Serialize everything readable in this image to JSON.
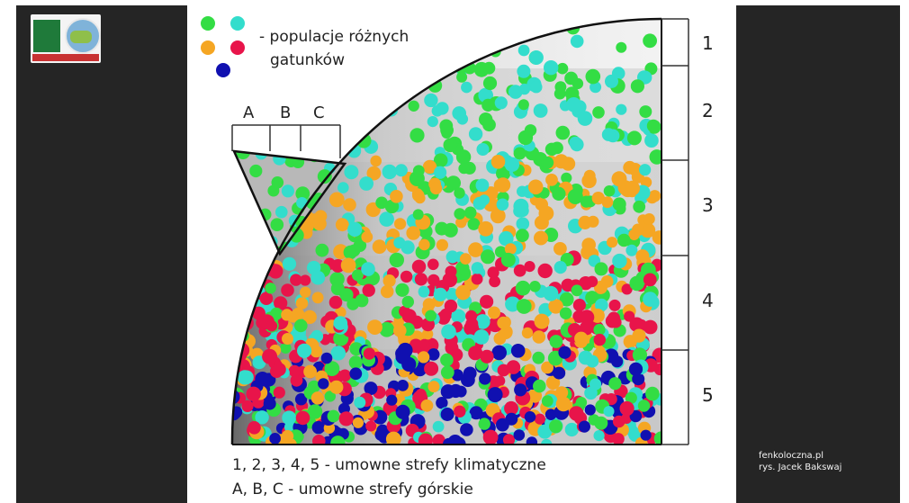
{
  "legend": {
    "line1": "- populacje różnych",
    "line2": "gatunków",
    "dot_colors": [
      "#33dd44",
      "#33ddcc",
      "#f5a623",
      "#e8144a",
      "#1010b0"
    ]
  },
  "mountain_zones": [
    "A",
    "B",
    "C"
  ],
  "climate_zones": [
    "1",
    "2",
    "3",
    "4",
    "5"
  ],
  "captions": {
    "climate": "1, 2, 3, 4, 5 - umowne strefy klimatyczne",
    "mountain": "A, B, C - umowne strefy górskie"
  },
  "credits": {
    "site": "fenkoloczna.pl",
    "author": "rys. Jacek Bakswaj"
  },
  "colors": {
    "green": "#33dd44",
    "cyan": "#33ddcc",
    "orange": "#f5a623",
    "red": "#e8144a",
    "blue": "#1010b0",
    "panel": "#252525"
  }
}
